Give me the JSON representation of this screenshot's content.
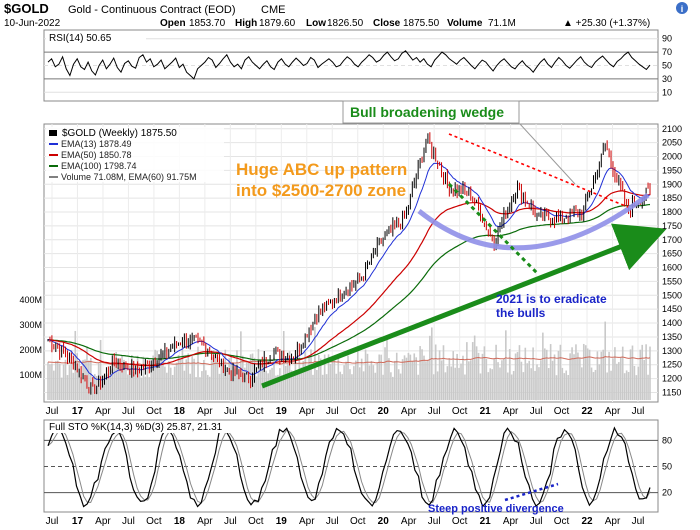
{
  "header": {
    "symbol": "$GOLD",
    "name": "Gold - Continuous Contract (EOD)",
    "exchange": "CME",
    "date": "10-Jun-2022",
    "open_label": "Open",
    "open": "1853.70",
    "high_label": "High",
    "high": "1879.60",
    "low_label": "Low",
    "low": "1826.50",
    "close_label": "Close",
    "close": "1875.50",
    "volume_label": "Volume",
    "volume": "71.1M",
    "change": "▲ +25.30 (+1.37%)"
  },
  "colors": {
    "price": "#000000",
    "ema13": "#1f2fd6",
    "ema50": "#cc0000",
    "ema100": "#0a6b0a",
    "volume": "#c9c9c9",
    "volume_ema": "#d06a5a",
    "arc": "#8f8fe8",
    "trend": "#1a8c1a",
    "wedge": "#ff0000",
    "annotation_orange": "#f39a1c",
    "annotation_blue": "#1a24c8",
    "annotation_green": "#1a8c1a",
    "rsi_fill": "#9aa39a",
    "panel_bg": "#ffffff",
    "grid": "#dadada"
  },
  "rsi": {
    "label": "RSI(14) 50.65",
    "axis": [
      "90",
      "70",
      "50",
      "30",
      "10"
    ],
    "levels": [
      70,
      30
    ],
    "ylim": [
      0,
      100
    ],
    "values": [
      55,
      60,
      48,
      52,
      63,
      45,
      35,
      52,
      60,
      48,
      44,
      55,
      42,
      36,
      50,
      58,
      45,
      52,
      61,
      47,
      40,
      53,
      57,
      49,
      46,
      62,
      66,
      55,
      60,
      48,
      52,
      58,
      45,
      50,
      55,
      61,
      47,
      52,
      40,
      35,
      30,
      45,
      50,
      55,
      62,
      58,
      47,
      53,
      60,
      66,
      55,
      48,
      52,
      45,
      58,
      63,
      55,
      50,
      45,
      52,
      57,
      48,
      44,
      55,
      60,
      52,
      48,
      55,
      61,
      56,
      50,
      53,
      62,
      58,
      47,
      52,
      56,
      60,
      55,
      48,
      50,
      57,
      63,
      59,
      52,
      48,
      55,
      60,
      66,
      62,
      55,
      58,
      65,
      70,
      63,
      57,
      60,
      68,
      72,
      65,
      58,
      62,
      55,
      60,
      52,
      48,
      58,
      64,
      70,
      66,
      60,
      56,
      52,
      58,
      62,
      56,
      50,
      45,
      52,
      58,
      55,
      48,
      42,
      50,
      56,
      60,
      54,
      48,
      45,
      52,
      57,
      50,
      46,
      40,
      48,
      55,
      60,
      52,
      47,
      55,
      62,
      57,
      50,
      46,
      52,
      58,
      63,
      55,
      50,
      47,
      55,
      60,
      64,
      58,
      52,
      48,
      56,
      60,
      66,
      70,
      62,
      57,
      52,
      48,
      44,
      50.65
    ]
  },
  "price_panel": {
    "title": "$GOLD (Weekly) 1875.50",
    "legend": [
      {
        "label": "EMA(13) 1878.49",
        "color": "#1f2fd6"
      },
      {
        "label": "EMA(50) 1850.78",
        "color": "#cc0000"
      },
      {
        "label": "EMA(100) 1798.74",
        "color": "#0a6b0a"
      },
      {
        "label": "Volume 71.08M, EMA(60) 91.75M",
        "color": "#808080"
      }
    ],
    "right_axis": [
      "2100",
      "2050",
      "2000",
      "1950",
      "1900",
      "1850",
      "1800",
      "1750",
      "1700",
      "1650",
      "1600",
      "1550",
      "1500",
      "1450",
      "1400",
      "1350",
      "1300",
      "1250",
      "1200",
      "1150"
    ],
    "volume_axis": [
      "400M",
      "300M",
      "200M",
      "100M"
    ],
    "annotations": {
      "wedge": "Bull broadening wedge",
      "abc_line1": "Huge ABC up pattern",
      "abc_line2": "into $2500-2700 zone",
      "eradicate_line1": "2021 is to eradicate",
      "eradicate_line2": "the bulls"
    }
  },
  "sto": {
    "label": "Full STO %K(14,3) %D(3) 25.87, 21.31",
    "axis": [
      "80",
      "50",
      "20"
    ],
    "annotation": "Steep positive divergence"
  },
  "x_axis": [
    "Jul",
    "17",
    "Apr",
    "Jul",
    "Oct",
    "18",
    "Apr",
    "Jul",
    "Oct",
    "19",
    "Apr",
    "Jul",
    "Oct",
    "20",
    "Apr",
    "Jul",
    "Oct",
    "21",
    "Apr",
    "Jul",
    "Oct",
    "22",
    "Apr",
    "Jul"
  ],
  "chart_data": {
    "type": "line",
    "title": "$GOLD (Weekly) 1875.50",
    "x_ticks": [
      "Jul",
      "17",
      "Apr",
      "Jul",
      "Oct",
      "18",
      "Apr",
      "Jul",
      "Oct",
      "19",
      "Apr",
      "Jul",
      "Oct",
      "20",
      "Apr",
      "Jul",
      "Oct",
      "21",
      "Apr",
      "Jul",
      "Oct",
      "22",
      "Apr",
      "Jul"
    ],
    "ylim": [
      1130,
      2110
    ],
    "close_quarterly": [
      [
        "Jul 2016",
        1340
      ],
      [
        "Oct 2016",
        1270
      ],
      [
        "Jan 2017",
        1155
      ],
      [
        "Apr 2017",
        1260
      ],
      [
        "Jul 2017",
        1225
      ],
      [
        "Oct 2017",
        1275
      ],
      [
        "Jan 2018",
        1340
      ],
      [
        "Apr 2018",
        1325
      ],
      [
        "Jul 2018",
        1230
      ],
      [
        "Oct 2018",
        1200
      ],
      [
        "Jan 2019",
        1290
      ],
      [
        "Apr 2019",
        1280
      ],
      [
        "Jul 2019",
        1420
      ],
      [
        "Oct 2019",
        1500
      ],
      [
        "Jan 2020",
        1560
      ],
      [
        "Apr 2020",
        1700
      ],
      [
        "Jul 2020",
        1780
      ],
      [
        "Aug 2020",
        2065
      ],
      [
        "Oct 2020",
        1890
      ],
      [
        "Jan 2021",
        1860
      ],
      [
        "Mar 2021",
        1690
      ],
      [
        "May 2021",
        1890
      ],
      [
        "Aug 2021",
        1780
      ],
      [
        "Oct 2021",
        1780
      ],
      [
        "Jan 2022",
        1800
      ],
      [
        "Mar 2022",
        2040
      ],
      [
        "May 2022",
        1810
      ],
      [
        "Jun 2022",
        1875.5
      ]
    ],
    "series": [
      {
        "name": "EMA(13)",
        "last": 1878.49
      },
      {
        "name": "EMA(50)",
        "last": 1850.78
      },
      {
        "name": "EMA(100)",
        "last": 1798.74
      },
      {
        "name": "Volume",
        "last": "71.08M"
      }
    ]
  }
}
